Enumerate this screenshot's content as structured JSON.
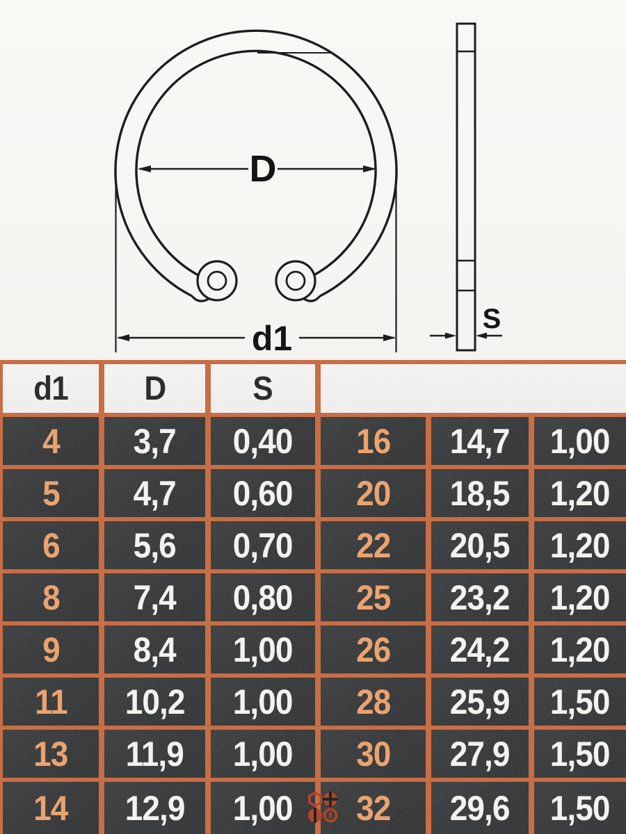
{
  "diagram": {
    "front_view": {
      "inner_diameter_label": "D",
      "outer_diameter_label": "d1"
    },
    "side_view": {
      "thickness_label": "S"
    }
  },
  "table": {
    "headers": [
      "d1",
      "D",
      "S"
    ],
    "rows": [
      [
        "4",
        "3,7",
        "0,40",
        "16",
        "14,7",
        "1,00"
      ],
      [
        "5",
        "4,7",
        "0,60",
        "20",
        "18,5",
        "1,20"
      ],
      [
        "6",
        "5,6",
        "0,70",
        "22",
        "20,5",
        "1,20"
      ],
      [
        "8",
        "7,4",
        "0,80",
        "25",
        "23,2",
        "1,20"
      ],
      [
        "9",
        "8,4",
        "1,00",
        "26",
        "24,2",
        "1,20"
      ],
      [
        "11",
        "10,2",
        "1,00",
        "28",
        "25,9",
        "1,50"
      ],
      [
        "13",
        "11,9",
        "1,00",
        "30",
        "27,9",
        "1,50"
      ],
      [
        "14",
        "12,9",
        "1,00",
        "32",
        "29,6",
        "1,50"
      ]
    ]
  },
  "icons": {
    "watermark": "fastener-heads-icon"
  },
  "colors": {
    "border_orange": "#c55d2e",
    "accent_orange_text": "#ec9a5f",
    "icon_red": "#b5452a",
    "cell_dark": "#242628",
    "header_bg": "#f4f3f1",
    "text_white": "#f6f5f3",
    "line_black": "#1d1d1d"
  }
}
